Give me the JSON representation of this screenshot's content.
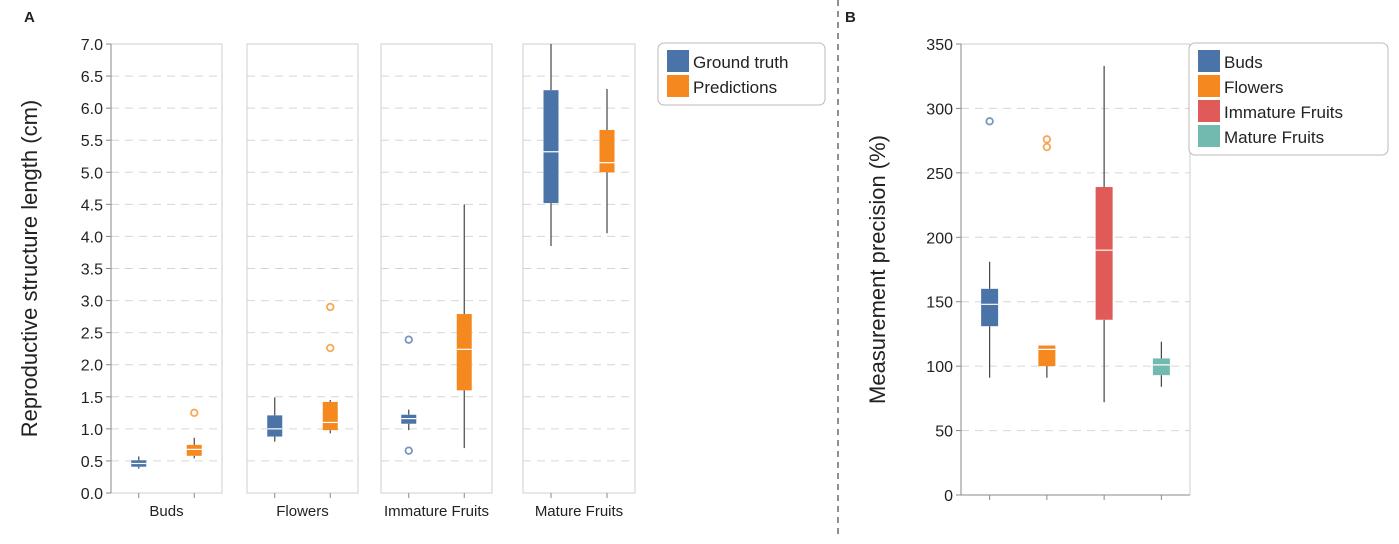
{
  "figure": {
    "panel_a_letter": "A",
    "panel_b_letter": "B"
  },
  "colors": {
    "ground_truth": "#4a74a8",
    "predictions": "#f5891f",
    "buds": "#4a74a8",
    "flowers": "#f5891f",
    "immature": "#e05a57",
    "mature": "#72b9b0"
  },
  "chart_data": [
    {
      "type": "box",
      "panel": "A",
      "ylabel": "Reproductive structure length (cm)",
      "ylim": [
        0,
        7
      ],
      "yticks": [
        "0.0",
        "0.5",
        "1.0",
        "1.5",
        "2.0",
        "2.5",
        "3.0",
        "3.5",
        "4.0",
        "4.5",
        "5.0",
        "5.5",
        "6.0",
        "6.5",
        "7.0"
      ],
      "grid": true,
      "legend_position": "top-right",
      "facets": [
        "Buds",
        "Flowers",
        "Immature Fruits",
        "Mature Fruits"
      ],
      "series": [
        {
          "name": "Ground truth",
          "boxes": [
            {
              "min": 0.38,
              "q1": 0.41,
              "median": 0.46,
              "q3": 0.51,
              "max": 0.57,
              "outliers": []
            },
            {
              "min": 0.8,
              "q1": 0.88,
              "median": 1.0,
              "q3": 1.21,
              "max": 1.49,
              "outliers": []
            },
            {
              "min": 0.98,
              "q1": 1.08,
              "median": 1.16,
              "q3": 1.22,
              "max": 1.3,
              "outliers": [
                2.39,
                0.66
              ]
            },
            {
              "min": 3.85,
              "q1": 4.52,
              "median": 5.32,
              "q3": 6.28,
              "max": 7.0,
              "outliers": []
            }
          ]
        },
        {
          "name": "Predictions",
          "boxes": [
            {
              "min": 0.54,
              "q1": 0.58,
              "median": 0.68,
              "q3": 0.75,
              "max": 0.86,
              "outliers": [
                1.25
              ]
            },
            {
              "min": 0.93,
              "q1": 0.98,
              "median": 1.1,
              "q3": 1.42,
              "max": 1.45,
              "outliers": [
                2.9,
                2.26
              ]
            },
            {
              "min": 0.7,
              "q1": 1.6,
              "median": 2.24,
              "q3": 2.79,
              "max": 4.5,
              "outliers": []
            },
            {
              "min": 4.05,
              "q1": 5.0,
              "median": 5.15,
              "q3": 5.66,
              "max": 6.3,
              "outliers": []
            }
          ]
        }
      ]
    },
    {
      "type": "box",
      "panel": "B",
      "ylabel": "Measurement precision (%)",
      "ylim": [
        0,
        350
      ],
      "yticks": [
        "0",
        "50",
        "100",
        "150",
        "200",
        "250",
        "300",
        "350"
      ],
      "grid": true,
      "legend_position": "top-right",
      "series": [
        {
          "name": "Buds",
          "box": {
            "min": 91,
            "q1": 131,
            "median": 148,
            "q3": 160,
            "max": 181,
            "outliers": [
              290
            ]
          }
        },
        {
          "name": "Flowers",
          "box": {
            "min": 91,
            "q1": 100,
            "median": 113,
            "q3": 116,
            "max": 116,
            "outliers": [
              276,
              270
            ]
          }
        },
        {
          "name": "Immature Fruits",
          "box": {
            "min": 72,
            "q1": 136,
            "median": 190,
            "q3": 239,
            "max": 333,
            "outliers": []
          }
        },
        {
          "name": "Mature Fruits",
          "box": {
            "min": 84,
            "q1": 93,
            "median": 101,
            "q3": 106,
            "max": 119,
            "outliers": []
          }
        }
      ]
    }
  ]
}
